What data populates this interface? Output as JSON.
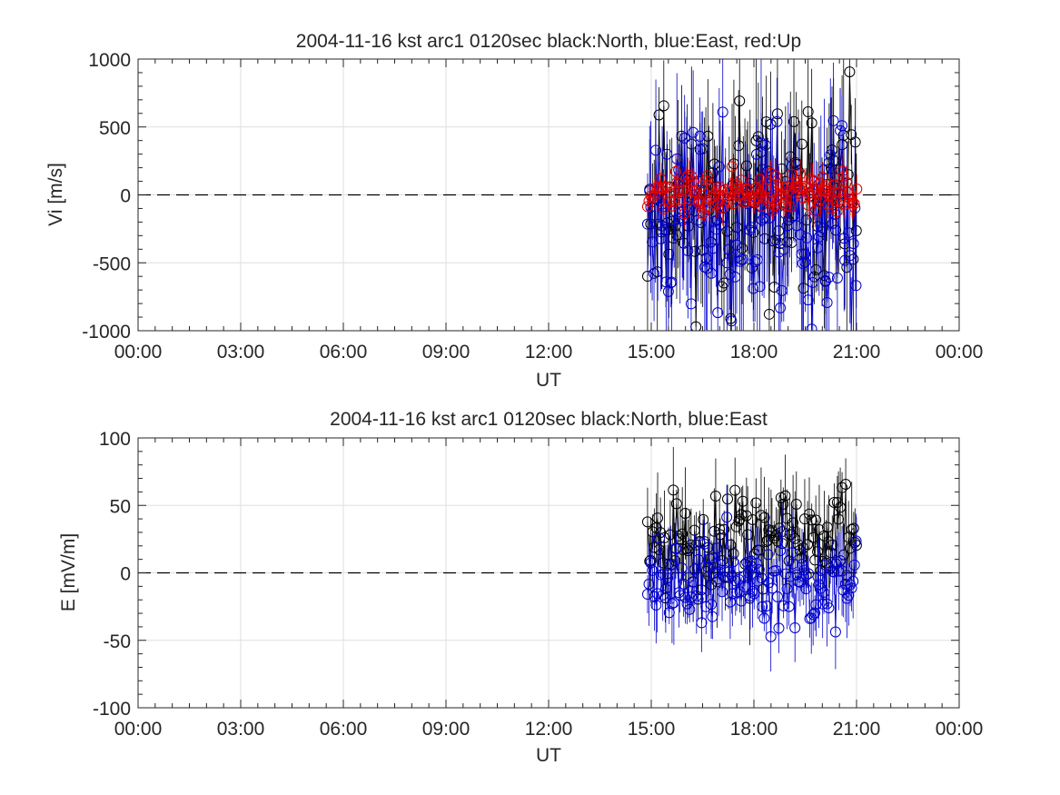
{
  "chart_data": [
    {
      "type": "line",
      "title": "2004-11-16 kst arc1 0120sec black:North, blue:East, red:Up",
      "xlabel": "UT",
      "ylabel": "Vi [m/s]",
      "xlim_hours": [
        0,
        24
      ],
      "ylim": [
        -1000,
        1000
      ],
      "xticks": [
        "00:00",
        "03:00",
        "06:00",
        "09:00",
        "12:00",
        "15:00",
        "18:00",
        "21:00",
        "00:00"
      ],
      "yticks": [
        "1000",
        "500",
        "0",
        "-500",
        "-1000"
      ],
      "ytick_values": [
        1000,
        500,
        0,
        -500,
        -1000
      ],
      "grid": true,
      "zero_line": "dashed",
      "marker": "circle",
      "error_bars": true,
      "x_range_of_data_hours": [
        14.9,
        21.0
      ],
      "series": [
        {
          "color": "#000000",
          "seed": 11,
          "mean": -60,
          "spread": 520,
          "clip": true
        },
        {
          "color": "#0000cc",
          "seed": 23,
          "mean": -180,
          "spread": 560,
          "clip": true
        },
        {
          "color": "#e00000",
          "seed": 37,
          "mean": 10,
          "spread": 110,
          "clip": false
        }
      ]
    },
    {
      "type": "line",
      "title": "2004-11-16 kst arc1 0120sec black:North, blue:East",
      "xlabel": "UT",
      "ylabel": "E [mV/m]",
      "xlim_hours": [
        0,
        24
      ],
      "ylim": [
        -100,
        100
      ],
      "xticks": [
        "00:00",
        "03:00",
        "06:00",
        "09:00",
        "12:00",
        "15:00",
        "18:00",
        "21:00",
        "00:00"
      ],
      "yticks": [
        "100",
        "50",
        "0",
        "-50",
        "-100"
      ],
      "ytick_values": [
        100,
        50,
        0,
        -50,
        -100
      ],
      "grid": true,
      "zero_line": "dashed",
      "marker": "circle",
      "error_bars": true,
      "x_range_of_data_hours": [
        14.9,
        21.0
      ],
      "series": [
        {
          "color": "#000000",
          "seed": 5,
          "mean": 25,
          "spread": 30,
          "clip": true
        },
        {
          "color": "#0000cc",
          "seed": 19,
          "mean": -5,
          "spread": 28,
          "clip": true
        }
      ]
    }
  ]
}
